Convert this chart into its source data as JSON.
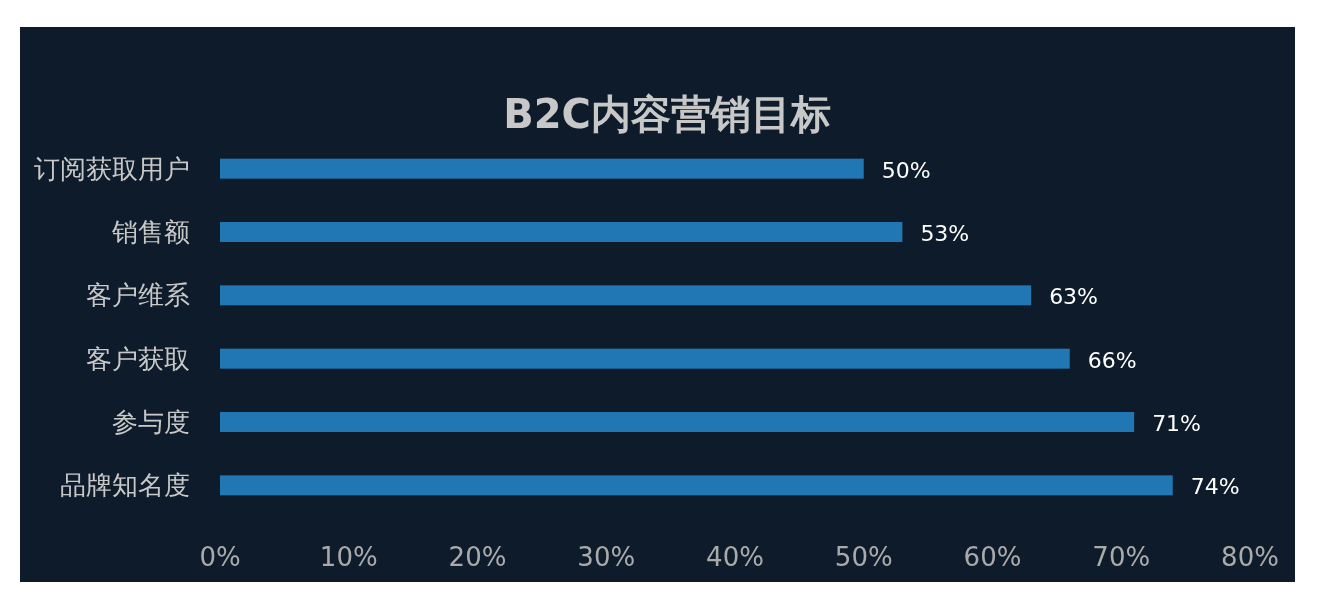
{
  "chart_data": {
    "type": "bar",
    "orientation": "horizontal",
    "title": "B2C内容营销目标",
    "categories": [
      "订阅获取用户",
      "销售额",
      "客户维系",
      "客户获取",
      "参与度",
      "品牌知名度"
    ],
    "values": [
      50,
      53,
      63,
      66,
      71,
      74
    ],
    "value_labels": [
      "50%",
      "53%",
      "63%",
      "66%",
      "71%",
      "74%"
    ],
    "color": "#2077b4",
    "xlim": [
      0,
      80
    ],
    "xticks": [
      {
        "value": 0,
        "label": "0%"
      },
      {
        "value": 10,
        "label": "10%"
      },
      {
        "value": 20,
        "label": "20%"
      },
      {
        "value": 30,
        "label": "30%"
      },
      {
        "value": 40,
        "label": "40%"
      },
      {
        "value": 50,
        "label": "50%"
      },
      {
        "value": 60,
        "label": "60%"
      },
      {
        "value": 70,
        "label": "70%"
      },
      {
        "value": 80,
        "label": "80%"
      }
    ],
    "grid": false
  }
}
